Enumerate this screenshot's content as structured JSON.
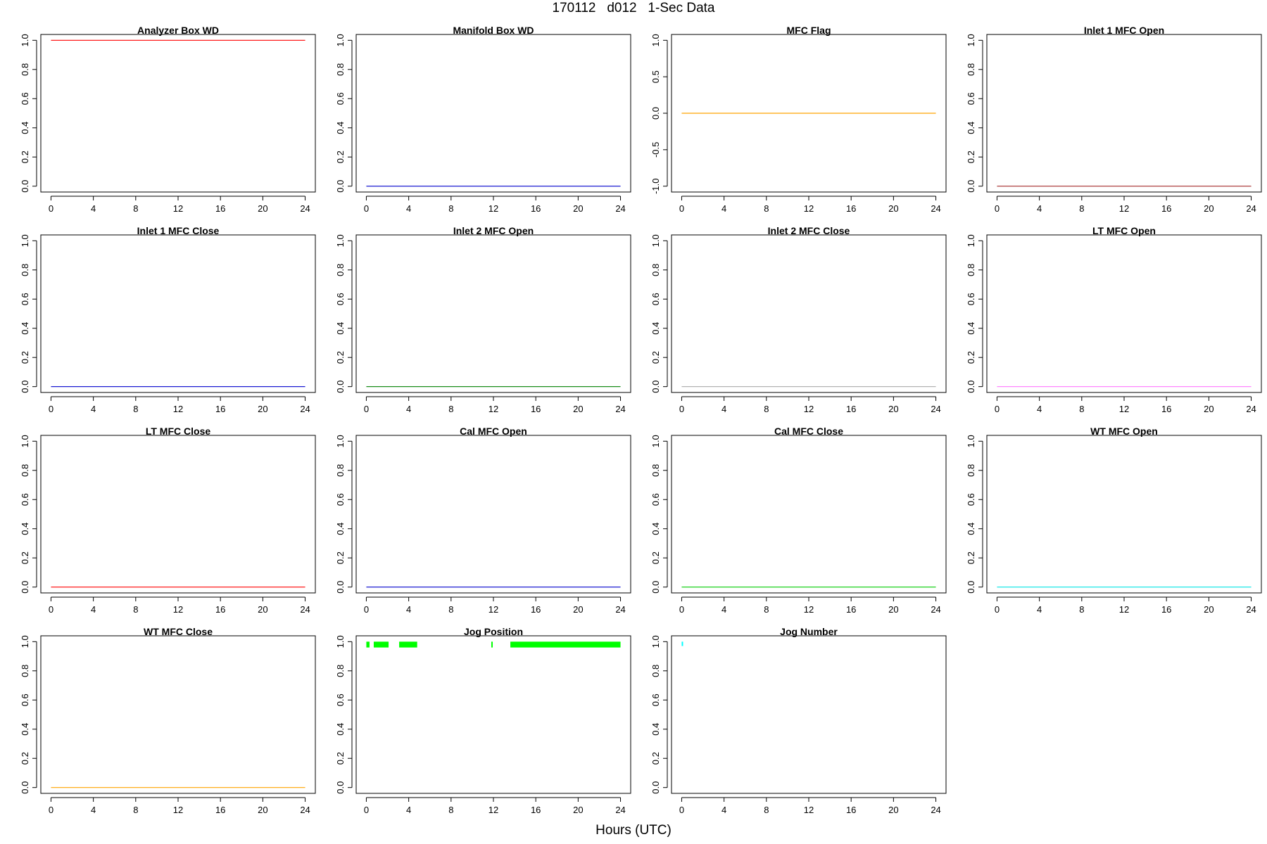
{
  "title": "170112   d012   1-Sec Data",
  "xlabel": "Hours (UTC)",
  "chart_data": [
    {
      "type": "line",
      "title": "Analyzer Box WD",
      "color": "#ff0000",
      "ylim": [
        0,
        1
      ],
      "yticks": [
        0.0,
        0.2,
        0.4,
        0.6,
        0.8,
        1.0
      ],
      "xlim": [
        0,
        24
      ],
      "xticks": [
        0,
        4,
        8,
        12,
        16,
        20,
        24
      ],
      "series": [
        {
          "x": [
            0,
            24
          ],
          "y": [
            1,
            1
          ]
        }
      ]
    },
    {
      "type": "line",
      "title": "Manifold Box WD",
      "color": "#0000cd",
      "ylim": [
        0,
        1
      ],
      "yticks": [
        0.0,
        0.2,
        0.4,
        0.6,
        0.8,
        1.0
      ],
      "xlim": [
        0,
        24
      ],
      "xticks": [
        0,
        4,
        8,
        12,
        16,
        20,
        24
      ],
      "series": [
        {
          "x": [
            0,
            24
          ],
          "y": [
            0,
            0
          ]
        }
      ]
    },
    {
      "type": "line",
      "title": "MFC Flag",
      "color": "#ffa500",
      "ylim": [
        -1,
        1
      ],
      "yticks": [
        -1.0,
        -0.5,
        0.0,
        0.5,
        1.0
      ],
      "xlim": [
        0,
        24
      ],
      "xticks": [
        0,
        4,
        8,
        12,
        16,
        20,
        24
      ],
      "series": [
        {
          "x": [
            0,
            24
          ],
          "y": [
            0,
            0
          ]
        }
      ]
    },
    {
      "type": "line",
      "title": "Inlet 1 MFC Open",
      "color": "#a52a2a",
      "ylim": [
        0,
        1
      ],
      "yticks": [
        0.0,
        0.2,
        0.4,
        0.6,
        0.8,
        1.0
      ],
      "xlim": [
        0,
        24
      ],
      "xticks": [
        0,
        4,
        8,
        12,
        16,
        20,
        24
      ],
      "series": [
        {
          "x": [
            0,
            24
          ],
          "y": [
            0,
            0
          ]
        }
      ]
    },
    {
      "type": "line",
      "title": "Inlet 1 MFC Close",
      "color": "#0000cd",
      "ylim": [
        0,
        1
      ],
      "yticks": [
        0.0,
        0.2,
        0.4,
        0.6,
        0.8,
        1.0
      ],
      "xlim": [
        0,
        24
      ],
      "xticks": [
        0,
        4,
        8,
        12,
        16,
        20,
        24
      ],
      "series": [
        {
          "x": [
            0,
            24
          ],
          "y": [
            0,
            0
          ]
        }
      ]
    },
    {
      "type": "line",
      "title": "Inlet 2 MFC Open",
      "color": "#008000",
      "ylim": [
        0,
        1
      ],
      "yticks": [
        0.0,
        0.2,
        0.4,
        0.6,
        0.8,
        1.0
      ],
      "xlim": [
        0,
        24
      ],
      "xticks": [
        0,
        4,
        8,
        12,
        16,
        20,
        24
      ],
      "series": [
        {
          "x": [
            0,
            24
          ],
          "y": [
            0,
            0
          ]
        }
      ]
    },
    {
      "type": "line",
      "title": "Inlet 2 MFC Close",
      "color": "#a9a9a9",
      "ylim": [
        0,
        1
      ],
      "yticks": [
        0.0,
        0.2,
        0.4,
        0.6,
        0.8,
        1.0
      ],
      "xlim": [
        0,
        24
      ],
      "xticks": [
        0,
        4,
        8,
        12,
        16,
        20,
        24
      ],
      "series": [
        {
          "x": [
            0,
            24
          ],
          "y": [
            0,
            0
          ]
        }
      ]
    },
    {
      "type": "line",
      "title": "LT MFC Open",
      "color": "#ff77ff",
      "ylim": [
        0,
        1
      ],
      "yticks": [
        0.0,
        0.2,
        0.4,
        0.6,
        0.8,
        1.0
      ],
      "xlim": [
        0,
        24
      ],
      "xticks": [
        0,
        4,
        8,
        12,
        16,
        20,
        24
      ],
      "series": [
        {
          "x": [
            0,
            24
          ],
          "y": [
            0,
            0
          ]
        }
      ]
    },
    {
      "type": "line",
      "title": "LT MFC Close",
      "color": "#ff0000",
      "ylim": [
        0,
        1
      ],
      "yticks": [
        0.0,
        0.2,
        0.4,
        0.6,
        0.8,
        1.0
      ],
      "xlim": [
        0,
        24
      ],
      "xticks": [
        0,
        4,
        8,
        12,
        16,
        20,
        24
      ],
      "series": [
        {
          "x": [
            0,
            24
          ],
          "y": [
            0,
            0
          ]
        }
      ]
    },
    {
      "type": "line",
      "title": "Cal MFC Open",
      "color": "#0000cd",
      "ylim": [
        0,
        1
      ],
      "yticks": [
        0.0,
        0.2,
        0.4,
        0.6,
        0.8,
        1.0
      ],
      "xlim": [
        0,
        24
      ],
      "xticks": [
        0,
        4,
        8,
        12,
        16,
        20,
        24
      ],
      "series": [
        {
          "x": [
            0,
            24
          ],
          "y": [
            0,
            0
          ]
        }
      ]
    },
    {
      "type": "line",
      "title": "Cal MFC Close",
      "color": "#00cc00",
      "ylim": [
        0,
        1
      ],
      "yticks": [
        0.0,
        0.2,
        0.4,
        0.6,
        0.8,
        1.0
      ],
      "xlim": [
        0,
        24
      ],
      "xticks": [
        0,
        4,
        8,
        12,
        16,
        20,
        24
      ],
      "series": [
        {
          "x": [
            0,
            24
          ],
          "y": [
            0,
            0
          ]
        }
      ]
    },
    {
      "type": "line",
      "title": "WT MFC Open",
      "color": "#00e5e5",
      "ylim": [
        0,
        1
      ],
      "yticks": [
        0.0,
        0.2,
        0.4,
        0.6,
        0.8,
        1.0
      ],
      "xlim": [
        0,
        24
      ],
      "xticks": [
        0,
        4,
        8,
        12,
        16,
        20,
        24
      ],
      "series": [
        {
          "x": [
            0,
            24
          ],
          "y": [
            0,
            0
          ]
        }
      ]
    },
    {
      "type": "line",
      "title": "WT MFC Close",
      "color": "#ffa500",
      "ylim": [
        0,
        1
      ],
      "yticks": [
        0.0,
        0.2,
        0.4,
        0.6,
        0.8,
        1.0
      ],
      "xlim": [
        0,
        24
      ],
      "xticks": [
        0,
        4,
        8,
        12,
        16,
        20,
        24
      ],
      "series": [
        {
          "x": [
            0,
            24
          ],
          "y": [
            0,
            0
          ]
        }
      ]
    },
    {
      "type": "bar",
      "title": "Jog Position",
      "color": "#00ff00",
      "ylim": [
        0,
        1
      ],
      "yticks": [
        0.0,
        0.2,
        0.4,
        0.6,
        0.8,
        1.0
      ],
      "xlim": [
        0,
        24
      ],
      "xticks": [
        0,
        4,
        8,
        12,
        16,
        20,
        24
      ],
      "bands": [
        [
          0.0,
          0.3
        ],
        [
          0.7,
          2.1
        ],
        [
          3.1,
          4.8
        ],
        [
          11.8,
          11.9
        ],
        [
          13.6,
          24.0
        ]
      ],
      "band_ylim": [
        0.96,
        1.0
      ]
    },
    {
      "type": "bar",
      "title": "Jog Number",
      "color": "#00ffff",
      "ylim": [
        0,
        1
      ],
      "yticks": [
        0.0,
        0.2,
        0.4,
        0.6,
        0.8,
        1.0
      ],
      "xlim": [
        0,
        24
      ],
      "xticks": [
        0,
        4,
        8,
        12,
        16,
        20,
        24
      ],
      "bands": [
        [
          0.0,
          0.1
        ]
      ],
      "band_ylim": [
        0.97,
        1.0
      ]
    }
  ]
}
